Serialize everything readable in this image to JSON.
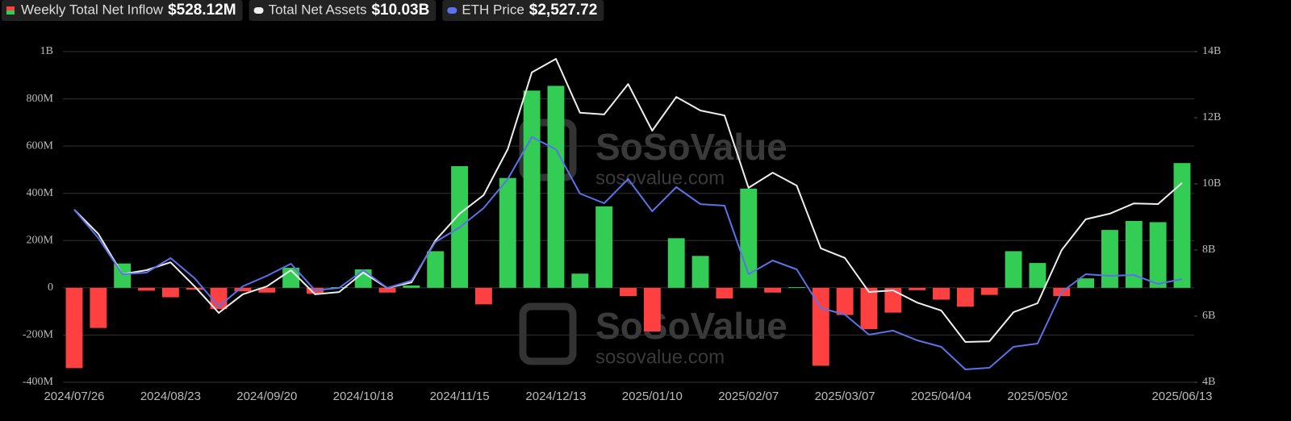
{
  "chart_data": {
    "type": "combo",
    "watermark": [
      "SoSoValue",
      "sosovalue.com"
    ],
    "categories": [
      "2024/07/26",
      null,
      null,
      null,
      "2024/08/23",
      null,
      null,
      null,
      "2024/09/20",
      null,
      null,
      null,
      "2024/10/18",
      null,
      null,
      null,
      "2024/11/15",
      null,
      null,
      null,
      "2024/12/13",
      null,
      null,
      null,
      "2025/01/10",
      null,
      null,
      null,
      "2025/02/07",
      null,
      null,
      null,
      "2025/03/07",
      null,
      null,
      null,
      "2025/04/04",
      null,
      null,
      null,
      "2025/05/02",
      null,
      null,
      null,
      null,
      null,
      "2025/06/13"
    ],
    "ylim": [
      -400,
      1000
    ],
    "yticks": [
      {
        "value": -400,
        "label": "-400M"
      },
      {
        "value": -200,
        "label": "-200M"
      },
      0,
      {
        "value": 200,
        "label": "200M"
      },
      {
        "value": 400,
        "label": "400M"
      },
      {
        "value": 600,
        "label": "600M"
      },
      {
        "value": 800,
        "label": "800M"
      },
      {
        "value": 1000,
        "label": "1B"
      }
    ],
    "y2lim": [
      4,
      14
    ],
    "y2ticks": [
      {
        "value": 4,
        "label": "4B"
      },
      {
        "value": 6,
        "label": "6B"
      },
      {
        "value": 8,
        "label": "8B"
      },
      {
        "value": 10,
        "label": "10B"
      },
      {
        "value": 12,
        "label": "12B"
      },
      {
        "value": 14,
        "label": "14B"
      }
    ],
    "grid": true,
    "series": [
      {
        "name": "Weekly Total Net Inflow",
        "latest_label": "$528.12M",
        "type": "bar",
        "color": "#33cc55",
        "negative_color": "#ff4040",
        "values": [
          -340,
          -170,
          103,
          -12,
          -40,
          -8,
          -90,
          -15,
          -20,
          85,
          -25,
          3,
          78,
          -20,
          10,
          155,
          515,
          -70,
          465,
          835,
          855,
          60,
          345,
          -35,
          -185,
          210,
          135,
          -45,
          420,
          -20,
          3,
          -330,
          -115,
          -175,
          -105,
          -10,
          -50,
          -80,
          -30,
          155,
          105,
          -35,
          40,
          245,
          283,
          278,
          528.12
        ]
      },
      {
        "name": "Total Net Assets",
        "latest_label": "$10.03B",
        "type": "line",
        "axis": "y2",
        "color": "#eeeeee",
        "values": [
          9.22,
          8.49,
          7.27,
          7.39,
          7.63,
          6.9,
          6.1,
          6.66,
          6.9,
          7.39,
          6.66,
          6.73,
          7.32,
          6.85,
          7.02,
          8.29,
          9.1,
          9.66,
          11.05,
          13.37,
          13.78,
          12.15,
          12.1,
          13.02,
          11.61,
          12.63,
          12.22,
          12.07,
          9.88,
          10.34,
          9.95,
          8.05,
          7.76,
          6.73,
          6.78,
          6.41,
          6.17,
          5.22,
          5.24,
          6.12,
          6.39,
          8.0,
          8.93,
          9.1,
          9.41,
          9.39,
          10.03
        ]
      },
      {
        "name": "ETH Price",
        "latest_label": "$2,527.72",
        "type": "line",
        "axis": "none",
        "color": "#5b72e8",
        "values": [
          3270,
          2968,
          2580,
          2597,
          2752,
          2536,
          2234,
          2450,
          2562,
          2692,
          2407,
          2433,
          2623,
          2433,
          2511,
          2925,
          3080,
          3287,
          3598,
          4047,
          3917,
          3443,
          3339,
          3598,
          3253,
          3512,
          3330,
          3313,
          2580,
          2726,
          2631,
          2217,
          2148,
          1932,
          1976,
          1872,
          1803,
          1561,
          1578,
          1803,
          1837,
          2390,
          2580,
          2562,
          2571,
          2476,
          2527.72
        ]
      }
    ]
  }
}
